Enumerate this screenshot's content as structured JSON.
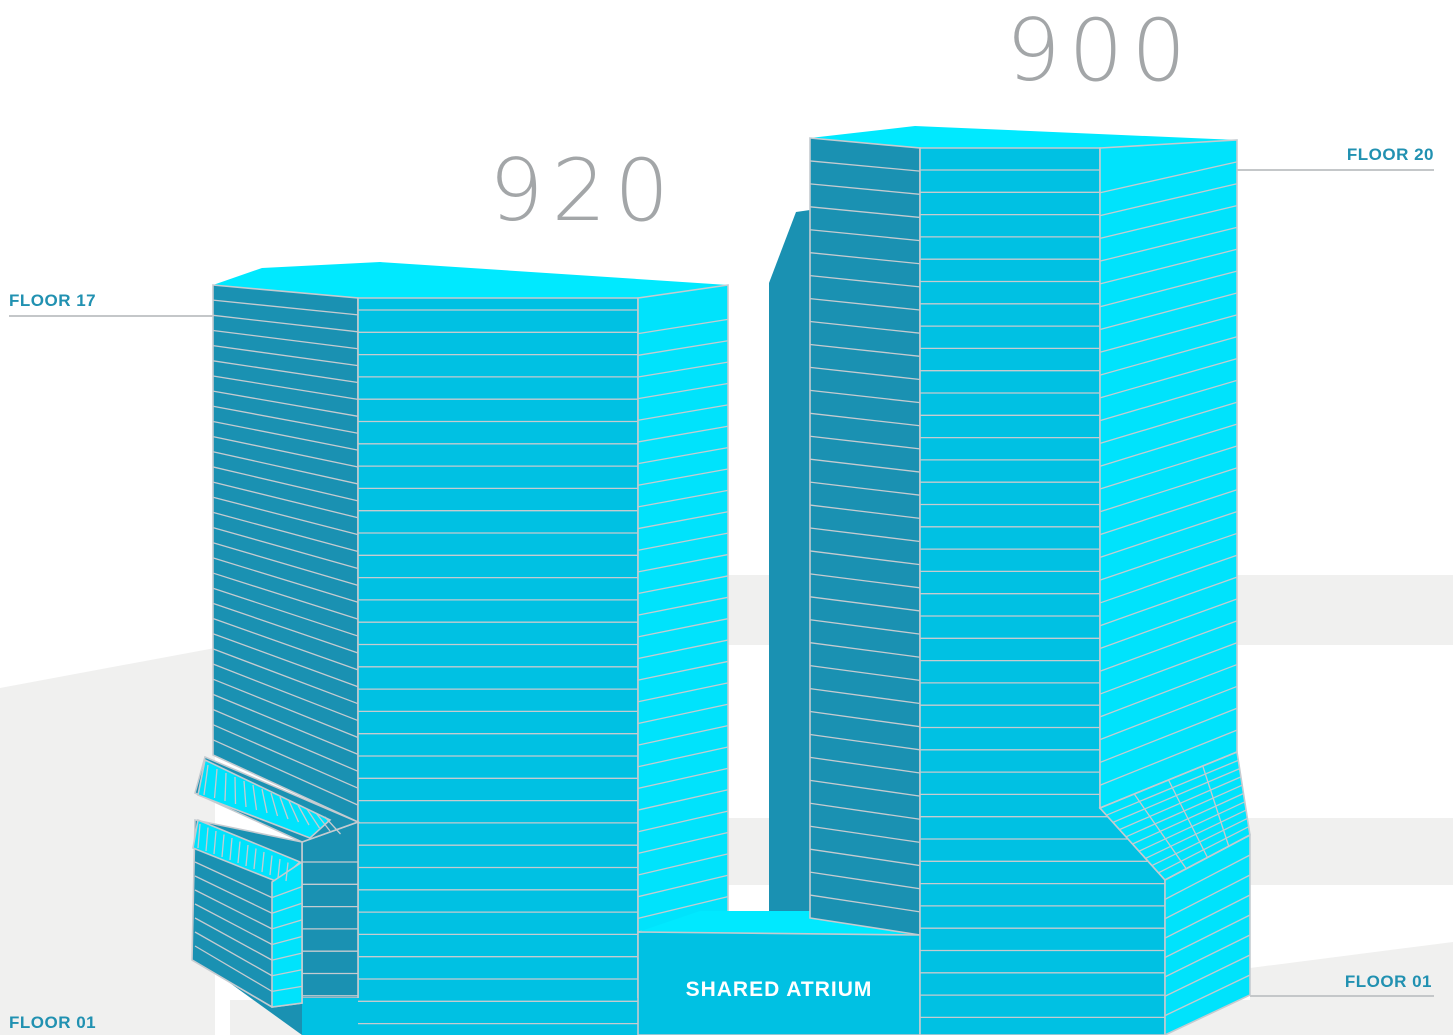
{
  "towers": [
    {
      "id": "left",
      "number": "920",
      "floor_top": "FLOOR 17",
      "floor_bottom": "FLOOR 01"
    },
    {
      "id": "right",
      "number": "900",
      "floor_top": "FLOOR 20",
      "floor_bottom": "FLOOR 01"
    }
  ],
  "atrium": {
    "label": "SHARED ATRIUM"
  },
  "colors": {
    "face_dark": "#1a91b2",
    "face_mid": "#00c1e3",
    "face_light": "#00e3fc",
    "roof": "#00e9ff",
    "floor_line": "#c5cbd0",
    "label_blue": "#2191b1",
    "number_grey": "#a3a6a8",
    "ground": "#f0f0ef"
  }
}
